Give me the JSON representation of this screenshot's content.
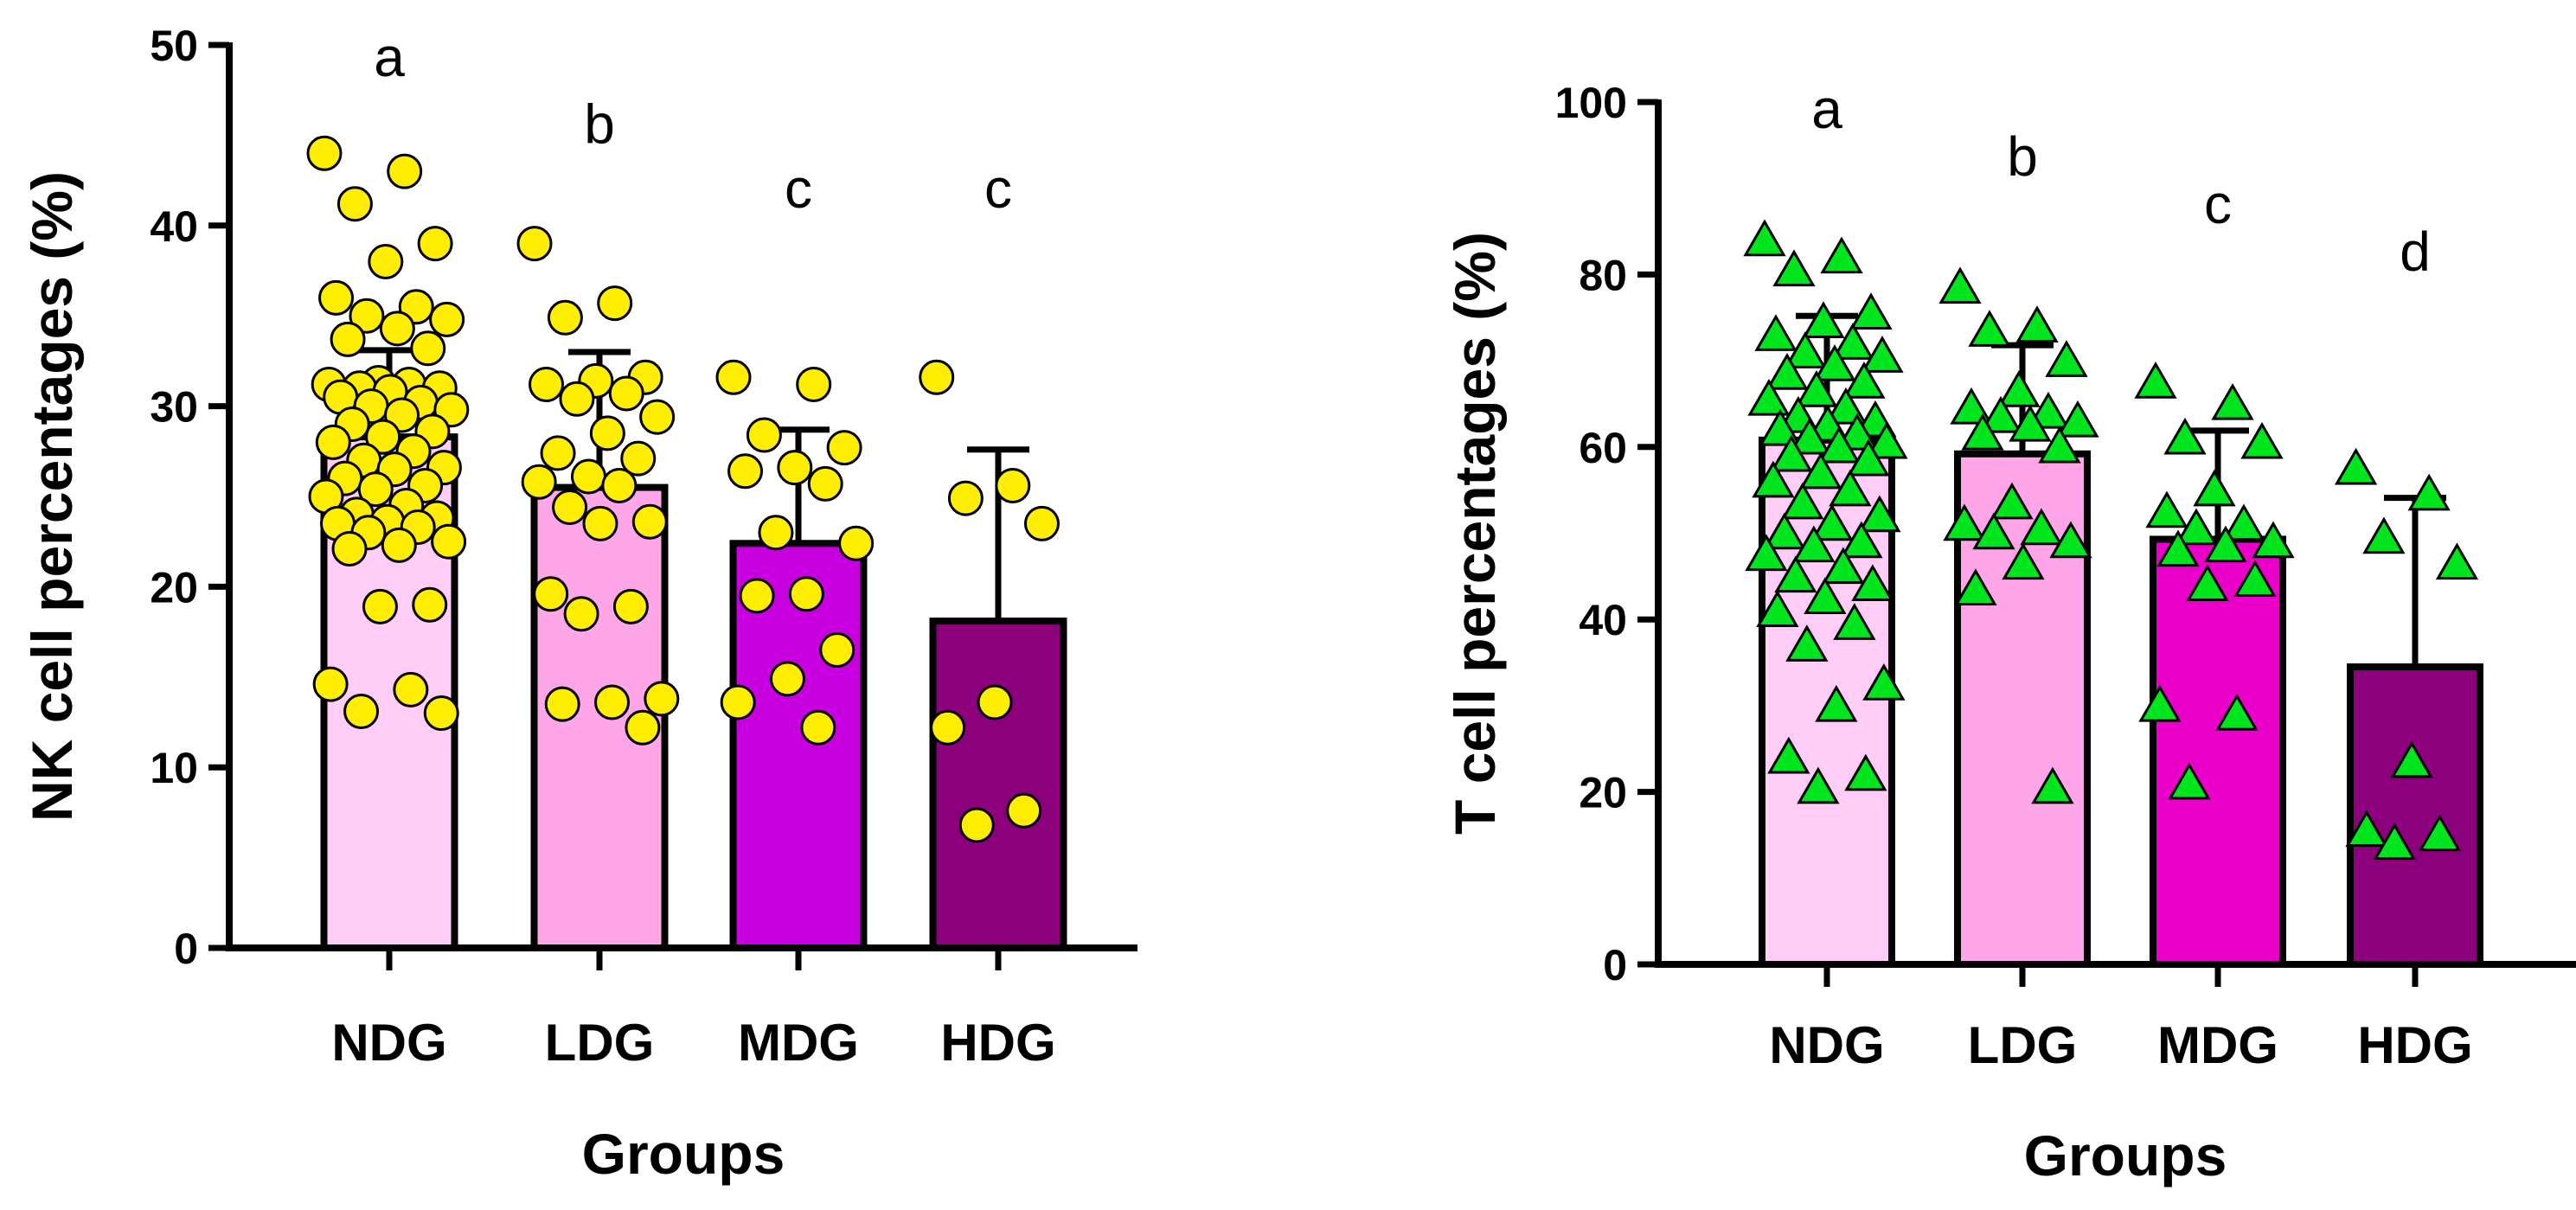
{
  "chart_data": [
    {
      "type": "bar",
      "xlabel": "Groups",
      "ylabel": "NK cell percentages (%)",
      "ylim": [
        0,
        50
      ],
      "yticks": [
        0,
        10,
        20,
        30,
        40,
        50
      ],
      "categories": [
        "NDG",
        "LDG",
        "MDG",
        "HDG"
      ],
      "values": [
        28.3,
        25.5,
        22.4,
        18.1
      ],
      "error_upper": [
        4.8,
        7.5,
        6.3,
        9.5
      ],
      "significance": [
        "a",
        "b",
        "c",
        "c"
      ],
      "marker": "circle",
      "marker_color": "#ffee00",
      "bar_colors": [
        "#ffcdf6",
        "#ffa6e8",
        "#c800df",
        "#8d007b"
      ],
      "points": [
        [
          44.0,
          43.0,
          41.2,
          39.0,
          38.0,
          36.0,
          35.5,
          35.0,
          34.8,
          34.3,
          33.7,
          33.2,
          31.3,
          31.2,
          31.2,
          31.0,
          31.0,
          30.8,
          30.5,
          30.2,
          30.0,
          29.8,
          29.5,
          29.0,
          28.6,
          28.3,
          28.0,
          27.5,
          27.0,
          26.6,
          26.5,
          26.0,
          25.6,
          25.4,
          25.0,
          24.5,
          24.0,
          23.8,
          23.6,
          23.5,
          23.3,
          23.0,
          22.5,
          22.3,
          22.1,
          19.0,
          18.9,
          14.6,
          14.3,
          13.1,
          13.0
        ],
        [
          39.0,
          35.7,
          34.9,
          31.6,
          31.4,
          31.2,
          30.7,
          30.4,
          29.4,
          28.5,
          27.4,
          27.1,
          26.1,
          25.8,
          25.6,
          24.4,
          23.6,
          23.5,
          19.6,
          18.9,
          18.5,
          13.8,
          13.6,
          13.5,
          12.2
        ],
        [
          31.6,
          31.2,
          28.4,
          27.7,
          26.6,
          26.4,
          25.7,
          23.0,
          22.4,
          19.6,
          19.5,
          16.5,
          14.9,
          13.6,
          12.2
        ],
        [
          31.6,
          25.6,
          24.9,
          23.5,
          13.6,
          12.2,
          7.6,
          6.8
        ]
      ]
    },
    {
      "type": "bar",
      "xlabel": "Groups",
      "ylabel": "T cell percentages (%)",
      "ylim": [
        0,
        100
      ],
      "yticks": [
        0,
        20,
        40,
        60,
        80,
        100
      ],
      "categories": [
        "NDG",
        "LDG",
        "MDG",
        "HDG"
      ],
      "values": [
        60.8,
        59.2,
        49.3,
        34.5
      ],
      "error_upper": [
        14.4,
        12.6,
        12.6,
        19.6
      ],
      "significance": [
        "a",
        "b",
        "c",
        "d"
      ],
      "marker": "triangle",
      "marker_color": "#00e61e",
      "bar_colors": [
        "#ffcdf6",
        "#ffa6e8",
        "#ea00c8",
        "#8d007b"
      ],
      "points": [
        [
          84.0,
          82.0,
          80.5,
          75.5,
          74.5,
          73.0,
          72.0,
          71.0,
          70.5,
          69.5,
          68.5,
          67.5,
          66.5,
          65.5,
          64.5,
          63.5,
          63.0,
          62.5,
          62.0,
          61.5,
          61.0,
          60.5,
          60.0,
          59.0,
          58.5,
          57.0,
          56.0,
          55.0,
          53.5,
          52.0,
          51.0,
          50.0,
          49.0,
          48.5,
          47.5,
          46.0,
          45.0,
          44.0,
          42.5,
          41.0,
          39.5,
          37.0,
          32.5,
          30.0,
          24.0,
          22.0,
          20.5
        ],
        [
          78.5,
          74.0,
          73.5,
          70.0,
          66.5,
          64.5,
          64.0,
          63.5,
          63.0,
          62.5,
          61.5,
          60.0,
          53.5,
          51.0,
          50.5,
          50.0,
          49.0,
          46.5,
          43.5,
          20.5
        ],
        [
          67.5,
          65.0,
          61.0,
          60.5,
          55.0,
          52.5,
          51.0,
          50.5,
          49.0,
          48.5,
          48.0,
          44.5,
          44.0,
          30.0,
          29.0,
          21.0
        ],
        [
          57.5,
          54.5,
          49.5,
          46.5,
          23.5,
          15.5,
          15.0,
          14.0
        ]
      ]
    }
  ]
}
